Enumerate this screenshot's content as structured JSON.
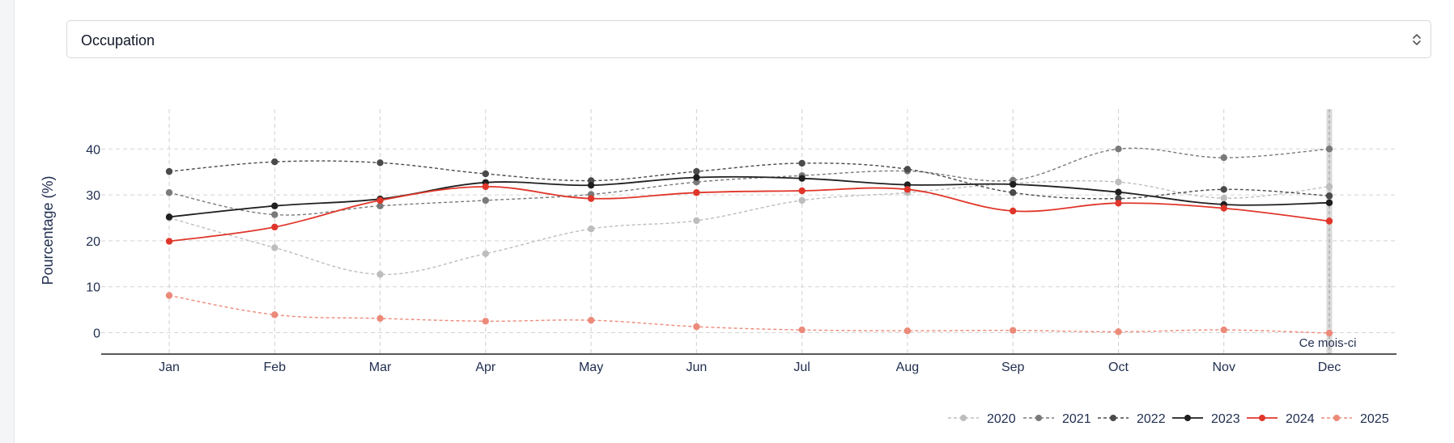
{
  "select": {
    "value": "Occupation"
  },
  "chart_data": {
    "type": "line",
    "ylabel": "Pourcentage (%)",
    "xlabel": "",
    "categories": [
      "Jan",
      "Feb",
      "Mar",
      "Apr",
      "May",
      "Jun",
      "Jul",
      "Aug",
      "Sep",
      "Oct",
      "Nov",
      "Dec"
    ],
    "ylim": [
      -5,
      48
    ],
    "yticks": [
      0,
      10,
      20,
      30,
      40
    ],
    "grid": true,
    "legend_position": "bottom-right",
    "annotation": {
      "label": "Ce mois-ci",
      "category": "Dec"
    },
    "series": [
      {
        "name": "2020",
        "color": "#bdbdbd",
        "dashed": true,
        "values": [
          25.0,
          18.5,
          12.7,
          17.2,
          22.6,
          24.4,
          28.8,
          30.5,
          32.5,
          32.8,
          29.3,
          31.8
        ]
      },
      {
        "name": "2021",
        "color": "#7a7a7a",
        "dashed": true,
        "values": [
          30.5,
          25.7,
          27.6,
          28.8,
          30.1,
          32.8,
          34.2,
          35.2,
          33.2,
          40.0,
          38.1,
          40.0
        ]
      },
      {
        "name": "2022",
        "color": "#4a4a4a",
        "dashed": true,
        "values": [
          35.1,
          37.2,
          37.0,
          34.6,
          33.1,
          35.1,
          36.9,
          35.6,
          30.5,
          29.2,
          31.2,
          29.8
        ]
      },
      {
        "name": "2023",
        "color": "#1f1f1f",
        "dashed": false,
        "values": [
          25.2,
          27.6,
          29.1,
          32.7,
          32.1,
          33.8,
          33.6,
          32.2,
          32.3,
          30.6,
          27.9,
          28.3
        ]
      },
      {
        "name": "2024",
        "color": "#e0362a",
        "dashed": false,
        "values": [
          19.9,
          23.0,
          28.8,
          31.8,
          29.2,
          30.5,
          30.9,
          31.2,
          26.5,
          28.2,
          27.1,
          24.3
        ]
      },
      {
        "name": "2025",
        "color": "#ec8a7a",
        "dashed": true,
        "values": [
          8.1,
          3.9,
          3.1,
          2.5,
          2.7,
          1.3,
          0.6,
          0.4,
          0.5,
          0.2,
          0.6,
          -0.1
        ]
      }
    ]
  }
}
